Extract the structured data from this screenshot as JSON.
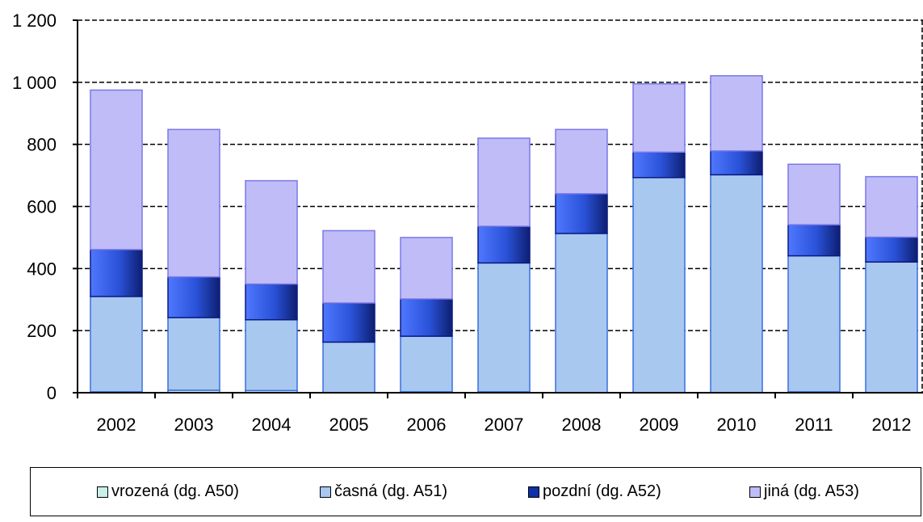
{
  "chart_data": {
    "type": "bar",
    "stacked": true,
    "categories": [
      "2002",
      "2003",
      "2004",
      "2005",
      "2006",
      "2007",
      "2008",
      "2009",
      "2010",
      "2011",
      "2012"
    ],
    "series": [
      {
        "name": "vrozená (dg. A50)",
        "color": "#c8f0e6",
        "values": [
          3,
          8,
          7,
          0,
          3,
          3,
          0,
          0,
          0,
          3,
          0
        ]
      },
      {
        "name": "časná (dg. A51)",
        "color": "#a8c8f0",
        "values": [
          307,
          234,
          228,
          163,
          179,
          415,
          513,
          693,
          702,
          438,
          421
        ]
      },
      {
        "name": "pozdní (dg. A52)",
        "color": "#2a52d8",
        "values": [
          151,
          131,
          115,
          126,
          120,
          118,
          128,
          82,
          77,
          100,
          80
        ]
      },
      {
        "name": "jiná (dg. A53)",
        "color": "#c0bcf8",
        "values": [
          514,
          475,
          333,
          233,
          198,
          284,
          207,
          220,
          242,
          195,
          195
        ]
      }
    ],
    "ylim": [
      0,
      1200
    ],
    "yticks": [
      0,
      200,
      400,
      600,
      800,
      1000,
      1200
    ],
    "ytick_labels": [
      "0",
      "200",
      "400",
      "600",
      "800",
      "1 000",
      "1 200"
    ],
    "grid": true,
    "legend_position": "bottom"
  }
}
